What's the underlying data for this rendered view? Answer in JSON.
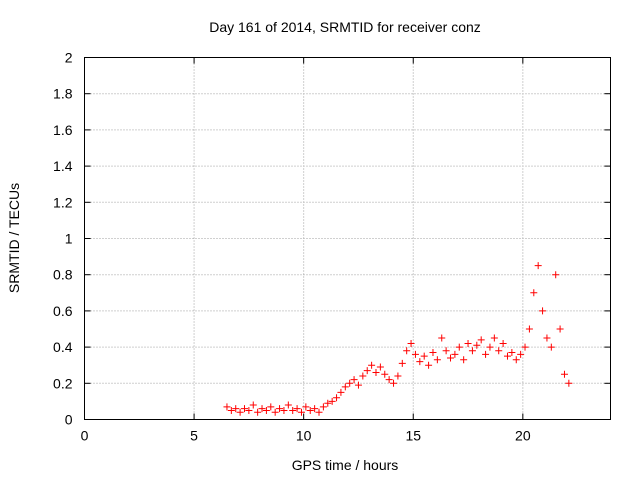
{
  "chart_data": {
    "type": "scatter",
    "title": "Day 161 of 2014, SRMTID for receiver conz",
    "xlabel": "GPS time / hours",
    "ylabel": "SRMTID / TECUs",
    "xlim": [
      0,
      24
    ],
    "ylim": [
      0,
      2
    ],
    "xticks": [
      0,
      5,
      10,
      15,
      20
    ],
    "xtick_labels": [
      "0",
      "5",
      "10",
      "15",
      "20"
    ],
    "yticks": [
      0,
      0.2,
      0.4,
      0.6,
      0.8,
      1,
      1.2,
      1.4,
      1.6,
      1.8,
      2
    ],
    "ytick_labels": [
      "0",
      "0.2",
      "0.4",
      "0.6",
      "0.8",
      "1",
      "1.2",
      "1.4",
      "1.6",
      "1.8",
      "2"
    ],
    "grid": true,
    "marker": "plus",
    "color": "#ff0000",
    "series": [
      {
        "name": "SRMTID",
        "points": [
          [
            6.5,
            0.07
          ],
          [
            6.7,
            0.05
          ],
          [
            6.9,
            0.06
          ],
          [
            7.1,
            0.04
          ],
          [
            7.3,
            0.06
          ],
          [
            7.5,
            0.05
          ],
          [
            7.7,
            0.08
          ],
          [
            7.9,
            0.04
          ],
          [
            8.1,
            0.06
          ],
          [
            8.3,
            0.05
          ],
          [
            8.5,
            0.07
          ],
          [
            8.7,
            0.04
          ],
          [
            8.9,
            0.06
          ],
          [
            9.1,
            0.05
          ],
          [
            9.3,
            0.08
          ],
          [
            9.5,
            0.05
          ],
          [
            9.7,
            0.06
          ],
          [
            9.9,
            0.04
          ],
          [
            10.1,
            0.07
          ],
          [
            10.3,
            0.05
          ],
          [
            10.5,
            0.06
          ],
          [
            10.7,
            0.04
          ],
          [
            10.9,
            0.07
          ],
          [
            11.1,
            0.09
          ],
          [
            11.3,
            0.1
          ],
          [
            11.5,
            0.12
          ],
          [
            11.7,
            0.15
          ],
          [
            11.9,
            0.18
          ],
          [
            12.1,
            0.2
          ],
          [
            12.3,
            0.22
          ],
          [
            12.5,
            0.19
          ],
          [
            12.7,
            0.24
          ],
          [
            12.9,
            0.27
          ],
          [
            13.1,
            0.3
          ],
          [
            13.3,
            0.26
          ],
          [
            13.5,
            0.29
          ],
          [
            13.7,
            0.25
          ],
          [
            13.9,
            0.22
          ],
          [
            14.1,
            0.2
          ],
          [
            14.3,
            0.24
          ],
          [
            14.5,
            0.31
          ],
          [
            14.7,
            0.38
          ],
          [
            14.9,
            0.42
          ],
          [
            15.1,
            0.36
          ],
          [
            15.3,
            0.32
          ],
          [
            15.5,
            0.35
          ],
          [
            15.7,
            0.3
          ],
          [
            15.9,
            0.37
          ],
          [
            16.1,
            0.33
          ],
          [
            16.3,
            0.45
          ],
          [
            16.5,
            0.38
          ],
          [
            16.7,
            0.34
          ],
          [
            16.9,
            0.36
          ],
          [
            17.1,
            0.4
          ],
          [
            17.3,
            0.33
          ],
          [
            17.5,
            0.42
          ],
          [
            17.7,
            0.38
          ],
          [
            17.9,
            0.41
          ],
          [
            18.1,
            0.44
          ],
          [
            18.3,
            0.36
          ],
          [
            18.5,
            0.4
          ],
          [
            18.7,
            0.45
          ],
          [
            18.9,
            0.38
          ],
          [
            19.1,
            0.42
          ],
          [
            19.3,
            0.35
          ],
          [
            19.5,
            0.37
          ],
          [
            19.7,
            0.33
          ],
          [
            19.9,
            0.36
          ],
          [
            20.1,
            0.4
          ],
          [
            20.3,
            0.5
          ],
          [
            20.5,
            0.7
          ],
          [
            20.7,
            0.85
          ],
          [
            20.9,
            0.6
          ],
          [
            21.1,
            0.45
          ],
          [
            21.3,
            0.4
          ],
          [
            21.5,
            0.8
          ],
          [
            21.7,
            0.5
          ],
          [
            21.9,
            0.25
          ],
          [
            22.1,
            0.2
          ]
        ]
      }
    ]
  }
}
